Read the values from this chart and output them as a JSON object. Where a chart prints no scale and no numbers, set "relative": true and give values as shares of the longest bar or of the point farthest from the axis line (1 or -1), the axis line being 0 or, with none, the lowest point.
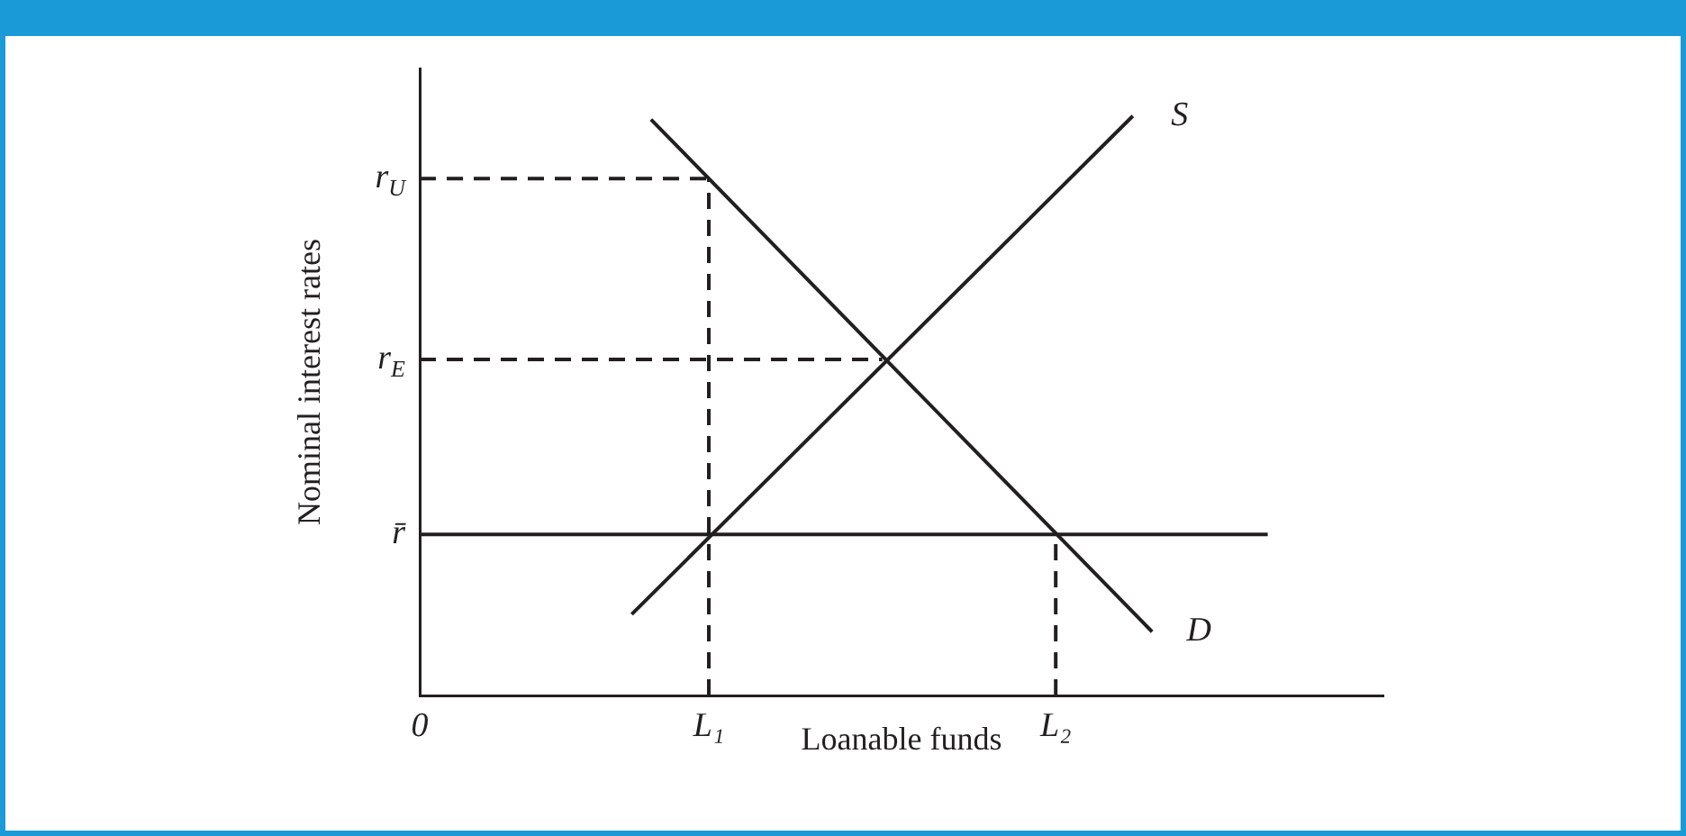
{
  "chart_data": {
    "type": "line",
    "relative": true,
    "xlabel": "Loanable funds",
    "ylabel": "Nominal interest rates",
    "categories": [
      "0",
      null,
      null,
      null,
      null,
      null,
      null,
      null,
      null,
      null,
      null,
      null,
      null,
      null,
      null,
      "L₁",
      null,
      null,
      null,
      null,
      null,
      null,
      null,
      null,
      null,
      null,
      null,
      null,
      null,
      null,
      null,
      null,
      null,
      "L₂",
      null,
      null,
      null,
      null,
      null,
      null,
      null,
      null,
      null,
      null,
      null,
      null,
      null,
      null,
      null,
      null,
      null
    ],
    "grid": false,
    "marker": "none",
    "series": [
      {
        "name": "S",
        "color": "#231f20",
        "line_style": "solid",
        "values": [
          null,
          null,
          null,
          null,
          null,
          null,
          null,
          null,
          null,
          null,
          null,
          0.14,
          null,
          null,
          null,
          null,
          null,
          null,
          null,
          null,
          null,
          null,
          null,
          null,
          null,
          null,
          null,
          null,
          null,
          null,
          null,
          null,
          null,
          null,
          null,
          null,
          null,
          1,
          null,
          null,
          null,
          null,
          null,
          null,
          null,
          null,
          null,
          null,
          null,
          null,
          null
        ]
      },
      {
        "name": "D",
        "color": "#231f20",
        "line_style": "solid",
        "values": [
          null,
          null,
          null,
          null,
          null,
          null,
          null,
          null,
          null,
          null,
          null,
          null,
          0.994,
          null,
          null,
          null,
          null,
          null,
          null,
          null,
          null,
          null,
          null,
          null,
          null,
          null,
          null,
          null,
          null,
          null,
          null,
          null,
          null,
          null,
          null,
          null,
          null,
          null,
          0.11,
          null,
          null,
          null,
          null,
          null,
          null,
          null,
          null,
          null,
          null,
          null,
          null
        ]
      },
      {
        "name": "r̄",
        "color": "#231f20",
        "line_style": "solid",
        "values": [
          0.278,
          null,
          null,
          null,
          null,
          null,
          null,
          null,
          null,
          null,
          null,
          null,
          null,
          null,
          null,
          null,
          null,
          null,
          null,
          null,
          null,
          null,
          null,
          null,
          null,
          null,
          null,
          null,
          null,
          null,
          null,
          null,
          null,
          null,
          null,
          null,
          null,
          null,
          null,
          null,
          null,
          null,
          null,
          null,
          0.278,
          null,
          null,
          null,
          null,
          null,
          null
        ]
      },
      {
        "name": "r$_{U}$",
        "color": "#231f20",
        "line_style": "dashed",
        "values": [
          0.892,
          null,
          null,
          null,
          null,
          null,
          null,
          null,
          null,
          null,
          null,
          null,
          null,
          null,
          null,
          0.892,
          null,
          null,
          null,
          null,
          null,
          null,
          null,
          null,
          null,
          null,
          null,
          null,
          null,
          null,
          null,
          null,
          null,
          null,
          null,
          null,
          null,
          null,
          null,
          null,
          null,
          null,
          null,
          null,
          null,
          null,
          null,
          null,
          null,
          null,
          null
        ]
      },
      {
        "name": "r$_{E}$",
        "color": "#231f20",
        "line_style": "dashed",
        "values": [
          0.58,
          null,
          null,
          null,
          null,
          null,
          null,
          null,
          null,
          null,
          null,
          null,
          null,
          null,
          null,
          null,
          null,
          null,
          null,
          null,
          null,
          null,
          null,
          null,
          0.58,
          null,
          null,
          null,
          null,
          null,
          null,
          null,
          null,
          null,
          null,
          null,
          null,
          null,
          null,
          null,
          null,
          null,
          null,
          null,
          null,
          null,
          null,
          null,
          null,
          null,
          null
        ]
      },
      {
        "color": "#231f20",
        "line_style": "dashed",
        "x": [
          "L₁",
          "L₁"
        ],
        "values": [
          0,
          0.892
        ]
      },
      {
        "color": "#231f20",
        "line_style": "dashed",
        "x": [
          "L₂",
          "L₂"
        ],
        "values": [
          0,
          0.278
        ]
      }
    ]
  }
}
